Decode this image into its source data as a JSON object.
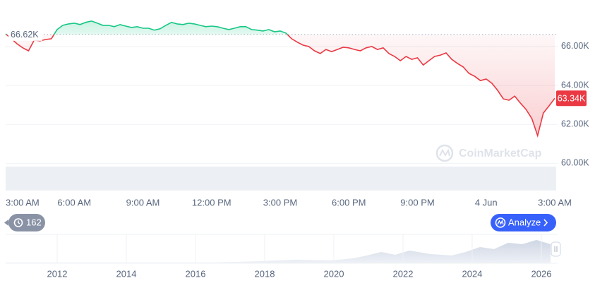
{
  "chart_data": {
    "type": "line",
    "categories": [
      "3:00 AM",
      null,
      null,
      null,
      null,
      null,
      null,
      null,
      null,
      null,
      null,
      null,
      "6:00 AM",
      null,
      null,
      null,
      null,
      null,
      null,
      null,
      null,
      null,
      null,
      null,
      "9:00 AM",
      null,
      null,
      null,
      null,
      null,
      null,
      null,
      null,
      null,
      null,
      null,
      "12:00 PM",
      null,
      null,
      null,
      null,
      null,
      null,
      null,
      null,
      null,
      null,
      null,
      "3:00 PM",
      null,
      null,
      null,
      null,
      null,
      null,
      null,
      null,
      null,
      null,
      null,
      "6:00 PM",
      null,
      null,
      null,
      null,
      null,
      null,
      null,
      null,
      null,
      null,
      null,
      "9:00 PM",
      null,
      null,
      null,
      null,
      null,
      null,
      null,
      null,
      null,
      null,
      null,
      "4 Jun",
      null,
      null,
      null,
      null,
      null,
      null,
      null,
      null,
      null,
      null,
      null,
      "3:00 AM"
    ],
    "values": [
      66650,
      66400,
      66140,
      65930,
      65780,
      66330,
      66290,
      66360,
      66400,
      66870,
      67090,
      67160,
      67200,
      67130,
      67240,
      67310,
      67200,
      67090,
      67090,
      67020,
      67130,
      67050,
      66980,
      67020,
      66940,
      66940,
      66840,
      66910,
      67090,
      67240,
      67160,
      67130,
      67200,
      67160,
      67090,
      67020,
      67050,
      67020,
      66940,
      66870,
      66940,
      67020,
      67020,
      66870,
      66840,
      66800,
      66870,
      66760,
      66800,
      66690,
      66400,
      66220,
      66070,
      66000,
      65780,
      65640,
      65850,
      65740,
      65850,
      65960,
      65930,
      65850,
      65780,
      65930,
      66000,
      65850,
      65930,
      65640,
      65490,
      65270,
      65490,
      65340,
      65420,
      65050,
      65270,
      65490,
      65560,
      65670,
      65340,
      65130,
      64950,
      64620,
      64470,
      64250,
      64330,
      64110,
      63750,
      63310,
      63240,
      63450,
      63090,
      62760,
      62290,
      61420,
      62580,
      62950,
      63340
    ],
    "up_color": "#16c784",
    "down_color": "#ea3943",
    "baseline": {
      "value": 66620,
      "label": "66.62K"
    },
    "last_value_label": "63.34K",
    "ylim": [
      58600,
      68100
    ],
    "yticks": [
      {
        "value": 60000,
        "label": "60.00K"
      },
      {
        "value": 62000,
        "label": "62.00K"
      },
      {
        "value": 64000,
        "label": "64.00K"
      },
      {
        "value": 66000,
        "label": "66.00K"
      }
    ],
    "grid": true,
    "watermark": "CoinMarketCap",
    "history_count": 162,
    "analyze_button": "Analyze",
    "overview_xticks": [
      "2012",
      "2014",
      "2016",
      "2018",
      "2020",
      "2022",
      "2024",
      "2026"
    ]
  }
}
